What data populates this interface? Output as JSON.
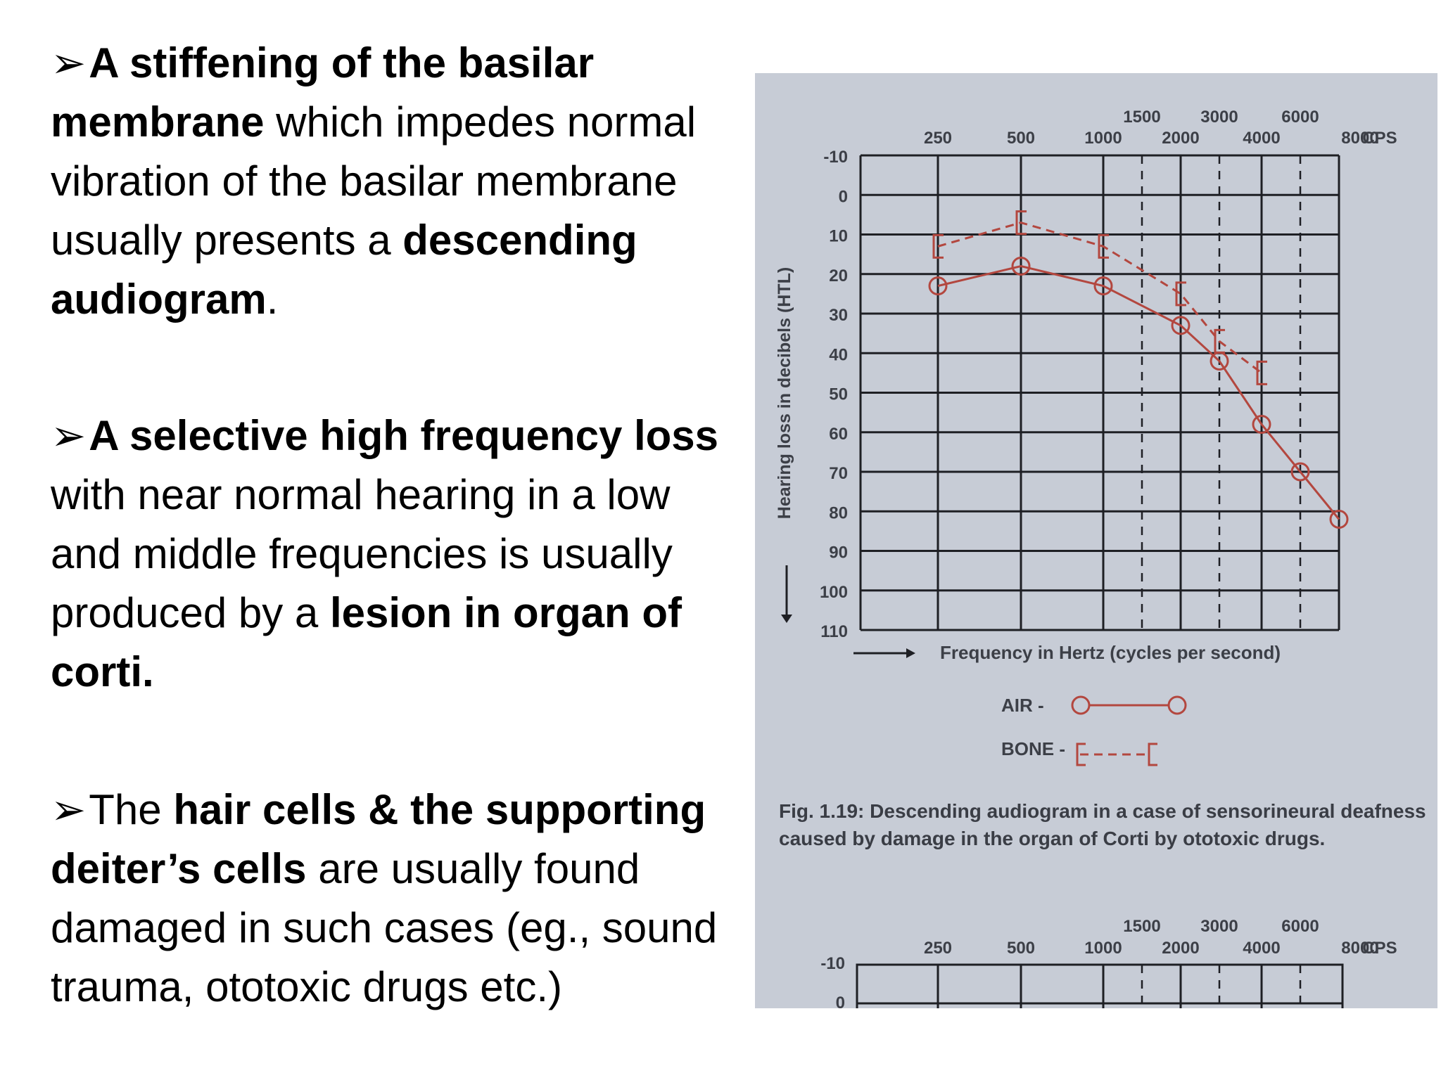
{
  "text": {
    "p1": {
      "bullet": "➢",
      "b1": "A stiffening of the basilar membrane",
      "r1": " which impedes normal vibration of the basilar membrane usually presents a ",
      "b2": "descending audiogram",
      "r2": "."
    },
    "p2": {
      "bullet": "➢",
      "b1": "A selective high frequency loss",
      "r1": " with near normal hearing in a low and middle frequencies is usually produced by a ",
      "b2": "lesion in organ of corti."
    },
    "p3": {
      "bullet": "➢",
      "r0": "The ",
      "b1": "hair cells & the supporting deiter’s cells",
      "r1": " are usually found damaged in such cases (eg., sound trauma, ototoxic drugs etc.)"
    }
  },
  "figure": {
    "caption": "Fig. 1.19: Descending audiogram in a case of sensorineural deafness caused by damage in the organ of Corti by ototoxic drugs.",
    "colors": {
      "background": "#c7ccd6",
      "grid": "#1e1f24",
      "data": "#b3473f",
      "text": "#3c3f47"
    }
  },
  "chart_data": {
    "type": "line",
    "xlabel": "Frequency in Hertz  (cycles per second)",
    "ylabel": "Hearing loss in decibels (HTL)",
    "x_unit": "CPS",
    "x_ticks_main": [
      "250",
      "500",
      "1000",
      "2000",
      "4000",
      "8000"
    ],
    "x_ticks_mid": [
      "1500",
      "3000",
      "6000"
    ],
    "y_ticks": [
      "-10",
      "0",
      "10",
      "20",
      "30",
      "40",
      "50",
      "60",
      "70",
      "80",
      "90",
      "100",
      "110"
    ],
    "ylim": [
      -10,
      110
    ],
    "y_inverted": true,
    "grid": true,
    "legend": [
      {
        "name": "AIR -",
        "marker": "circle"
      },
      {
        "name": "BONE -",
        "marker": "bracket"
      }
    ],
    "series": [
      {
        "name": "AIR -",
        "points": [
          [
            "250",
            23
          ],
          [
            "500",
            18
          ],
          [
            "1000",
            23
          ],
          [
            "2000",
            33
          ],
          [
            "3000",
            42
          ],
          [
            "4000",
            58
          ],
          [
            "6000",
            70
          ],
          [
            "8000",
            82
          ]
        ]
      },
      {
        "name": "BONE -",
        "points": [
          [
            "250",
            13
          ],
          [
            "500",
            7
          ],
          [
            "1000",
            13
          ],
          [
            "2000",
            25
          ],
          [
            "3000",
            37
          ],
          [
            "4000",
            45
          ]
        ]
      }
    ],
    "second_chart_partial": {
      "x_ticks_main": [
        "250",
        "500",
        "1000",
        "2000",
        "4000",
        "8000"
      ],
      "x_ticks_mid": [
        "1500",
        "3000",
        "6000"
      ],
      "y_ticks": [
        "-10",
        "0"
      ],
      "x_unit": "CPS"
    }
  }
}
